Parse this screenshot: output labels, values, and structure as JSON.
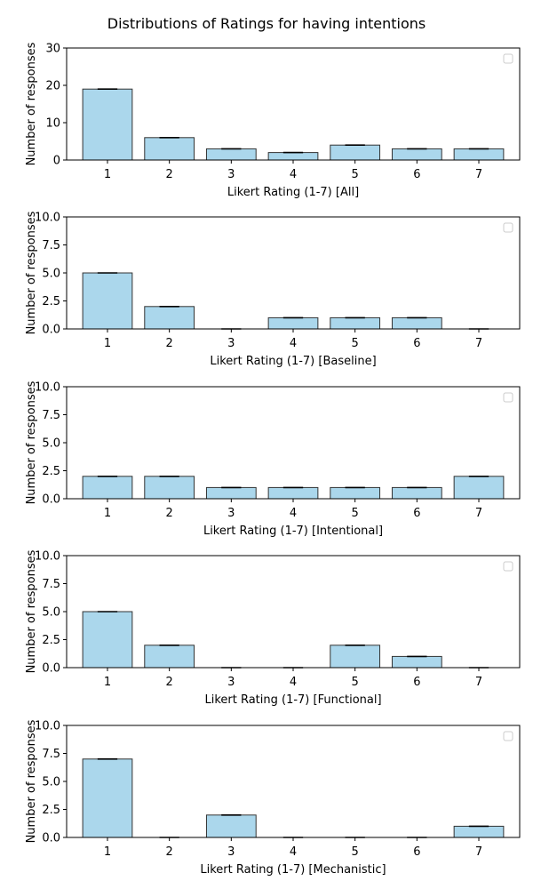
{
  "figure": {
    "title": "Distributions of Ratings for having intentions"
  },
  "colors": {
    "bar_fill": "#abd7ec",
    "bar_edge": "#333333",
    "errorbar": "#000000",
    "axes": "#000000",
    "legend_box": "#cccccc"
  },
  "chart_data": [
    {
      "type": "bar",
      "categories": [
        "1",
        "2",
        "3",
        "4",
        "5",
        "6",
        "7"
      ],
      "values": [
        19,
        6,
        3,
        2,
        4,
        3,
        3
      ],
      "xlabel": "Likert Rating (1-7) [All]",
      "ylabel": "Number of responses",
      "ylim": [
        0,
        30
      ],
      "yticks": [
        "0",
        "10",
        "20",
        "30"
      ],
      "grid": false,
      "legend": "top-right (empty)"
    },
    {
      "type": "bar",
      "categories": [
        "1",
        "2",
        "3",
        "4",
        "5",
        "6",
        "7"
      ],
      "values": [
        5,
        2,
        0,
        1,
        1,
        1,
        0
      ],
      "xlabel": "Likert Rating (1-7) [Baseline]",
      "ylabel": "Number of responses",
      "ylim": [
        0,
        10
      ],
      "yticks": [
        "0.0",
        "2.5",
        "5.0",
        "7.5",
        "10.0"
      ],
      "grid": false,
      "legend": "top-right (empty)"
    },
    {
      "type": "bar",
      "categories": [
        "1",
        "2",
        "3",
        "4",
        "5",
        "6",
        "7"
      ],
      "values": [
        2,
        2,
        1,
        1,
        1,
        1,
        2
      ],
      "xlabel": "Likert Rating (1-7) [Intentional]",
      "ylabel": "Number of responses",
      "ylim": [
        0,
        10
      ],
      "yticks": [
        "0.0",
        "2.5",
        "5.0",
        "7.5",
        "10.0"
      ],
      "grid": false,
      "legend": "top-right (empty)"
    },
    {
      "type": "bar",
      "categories": [
        "1",
        "2",
        "3",
        "4",
        "5",
        "6",
        "7"
      ],
      "values": [
        5,
        2,
        0,
        0,
        2,
        1,
        0
      ],
      "xlabel": "Likert Rating (1-7) [Functional]",
      "ylabel": "Number of responses",
      "ylim": [
        0,
        10
      ],
      "yticks": [
        "0.0",
        "2.5",
        "5.0",
        "7.5",
        "10.0"
      ],
      "grid": false,
      "legend": "top-right (empty)"
    },
    {
      "type": "bar",
      "categories": [
        "1",
        "2",
        "3",
        "4",
        "5",
        "6",
        "7"
      ],
      "values": [
        7,
        0,
        2,
        0,
        0,
        0,
        1
      ],
      "xlabel": "Likert Rating (1-7) [Mechanistic]",
      "ylabel": "Number of responses",
      "ylim": [
        0,
        10
      ],
      "yticks": [
        "0.0",
        "2.5",
        "5.0",
        "7.5",
        "10.0"
      ],
      "grid": false,
      "legend": "top-right (empty)"
    }
  ]
}
